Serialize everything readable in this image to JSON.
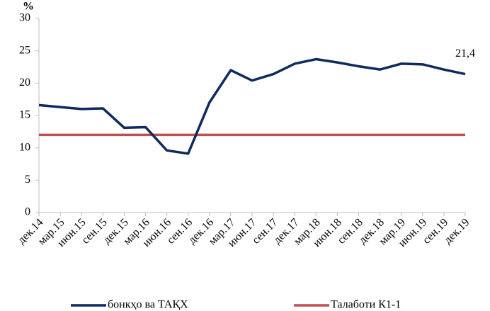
{
  "chart_data": {
    "type": "line",
    "y_label": "%",
    "categories": [
      "дек.14",
      "мар.15",
      "июн.15",
      "сен.15",
      "дек.15",
      "мар.16",
      "июн.16",
      "сен.16",
      "дек.16",
      "мар.17",
      "июн.17",
      "сен.17",
      "дек.17",
      "мар.18",
      "июн.18",
      "сен.18",
      "дек.18",
      "мар.19",
      "июн.19",
      "сен.19",
      "дек.19"
    ],
    "series": [
      {
        "name": "бонкҳо ва ТАҚХ",
        "color": "#0e2a5e",
        "values": [
          16.6,
          16.3,
          16.0,
          16.1,
          13.1,
          13.2,
          9.6,
          9.1,
          17.0,
          22.0,
          20.4,
          21.4,
          23.0,
          23.7,
          23.2,
          22.6,
          22.1,
          23.0,
          22.9,
          22.1,
          21.4
        ],
        "value_labels": [
          null,
          null,
          null,
          null,
          null,
          null,
          null,
          null,
          null,
          null,
          null,
          null,
          null,
          null,
          null,
          null,
          null,
          null,
          null,
          null,
          "21,4"
        ]
      },
      {
        "name": "Талаботи К1-1",
        "color": "#c0504d",
        "values": [
          12,
          12,
          12,
          12,
          12,
          12,
          12,
          12,
          12,
          12,
          12,
          12,
          12,
          12,
          12,
          12,
          12,
          12,
          12,
          12,
          12
        ]
      }
    ],
    "ylim": [
      0,
      30
    ],
    "yticks": [
      0,
      5,
      10,
      15,
      20,
      25,
      30
    ],
    "grid": false,
    "legend": "bottom"
  }
}
